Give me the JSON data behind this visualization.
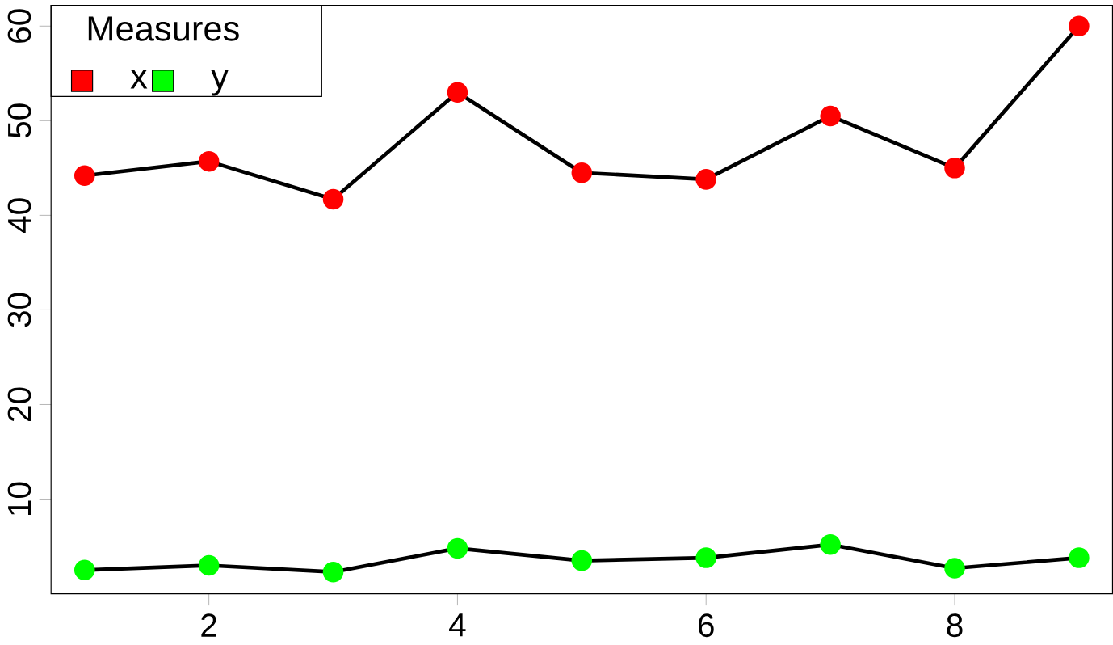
{
  "chart_data": {
    "type": "line",
    "legend_title": "Measures",
    "x": [
      1,
      2,
      3,
      4,
      5,
      6,
      7,
      8,
      9
    ],
    "series": [
      {
        "name": "x",
        "color": "#ff0000",
        "values": [
          44.2,
          45.7,
          41.7,
          53,
          44.5,
          43.8,
          50.5,
          45,
          60
        ]
      },
      {
        "name": "y",
        "color": "#00ff00",
        "values": [
          2.5,
          3,
          2.3,
          4.8,
          3.5,
          3.8,
          5.2,
          2.7,
          3.8
        ]
      }
    ],
    "xlim": [
      0.73,
      9.27
    ],
    "ylim": [
      0,
      62.2
    ],
    "xticks": [
      2,
      4,
      6,
      8
    ],
    "yticks": [
      10,
      20,
      30,
      40,
      50,
      60
    ],
    "legend": "top left",
    "marker": "circle",
    "line_style": "solid",
    "grid": false
  }
}
